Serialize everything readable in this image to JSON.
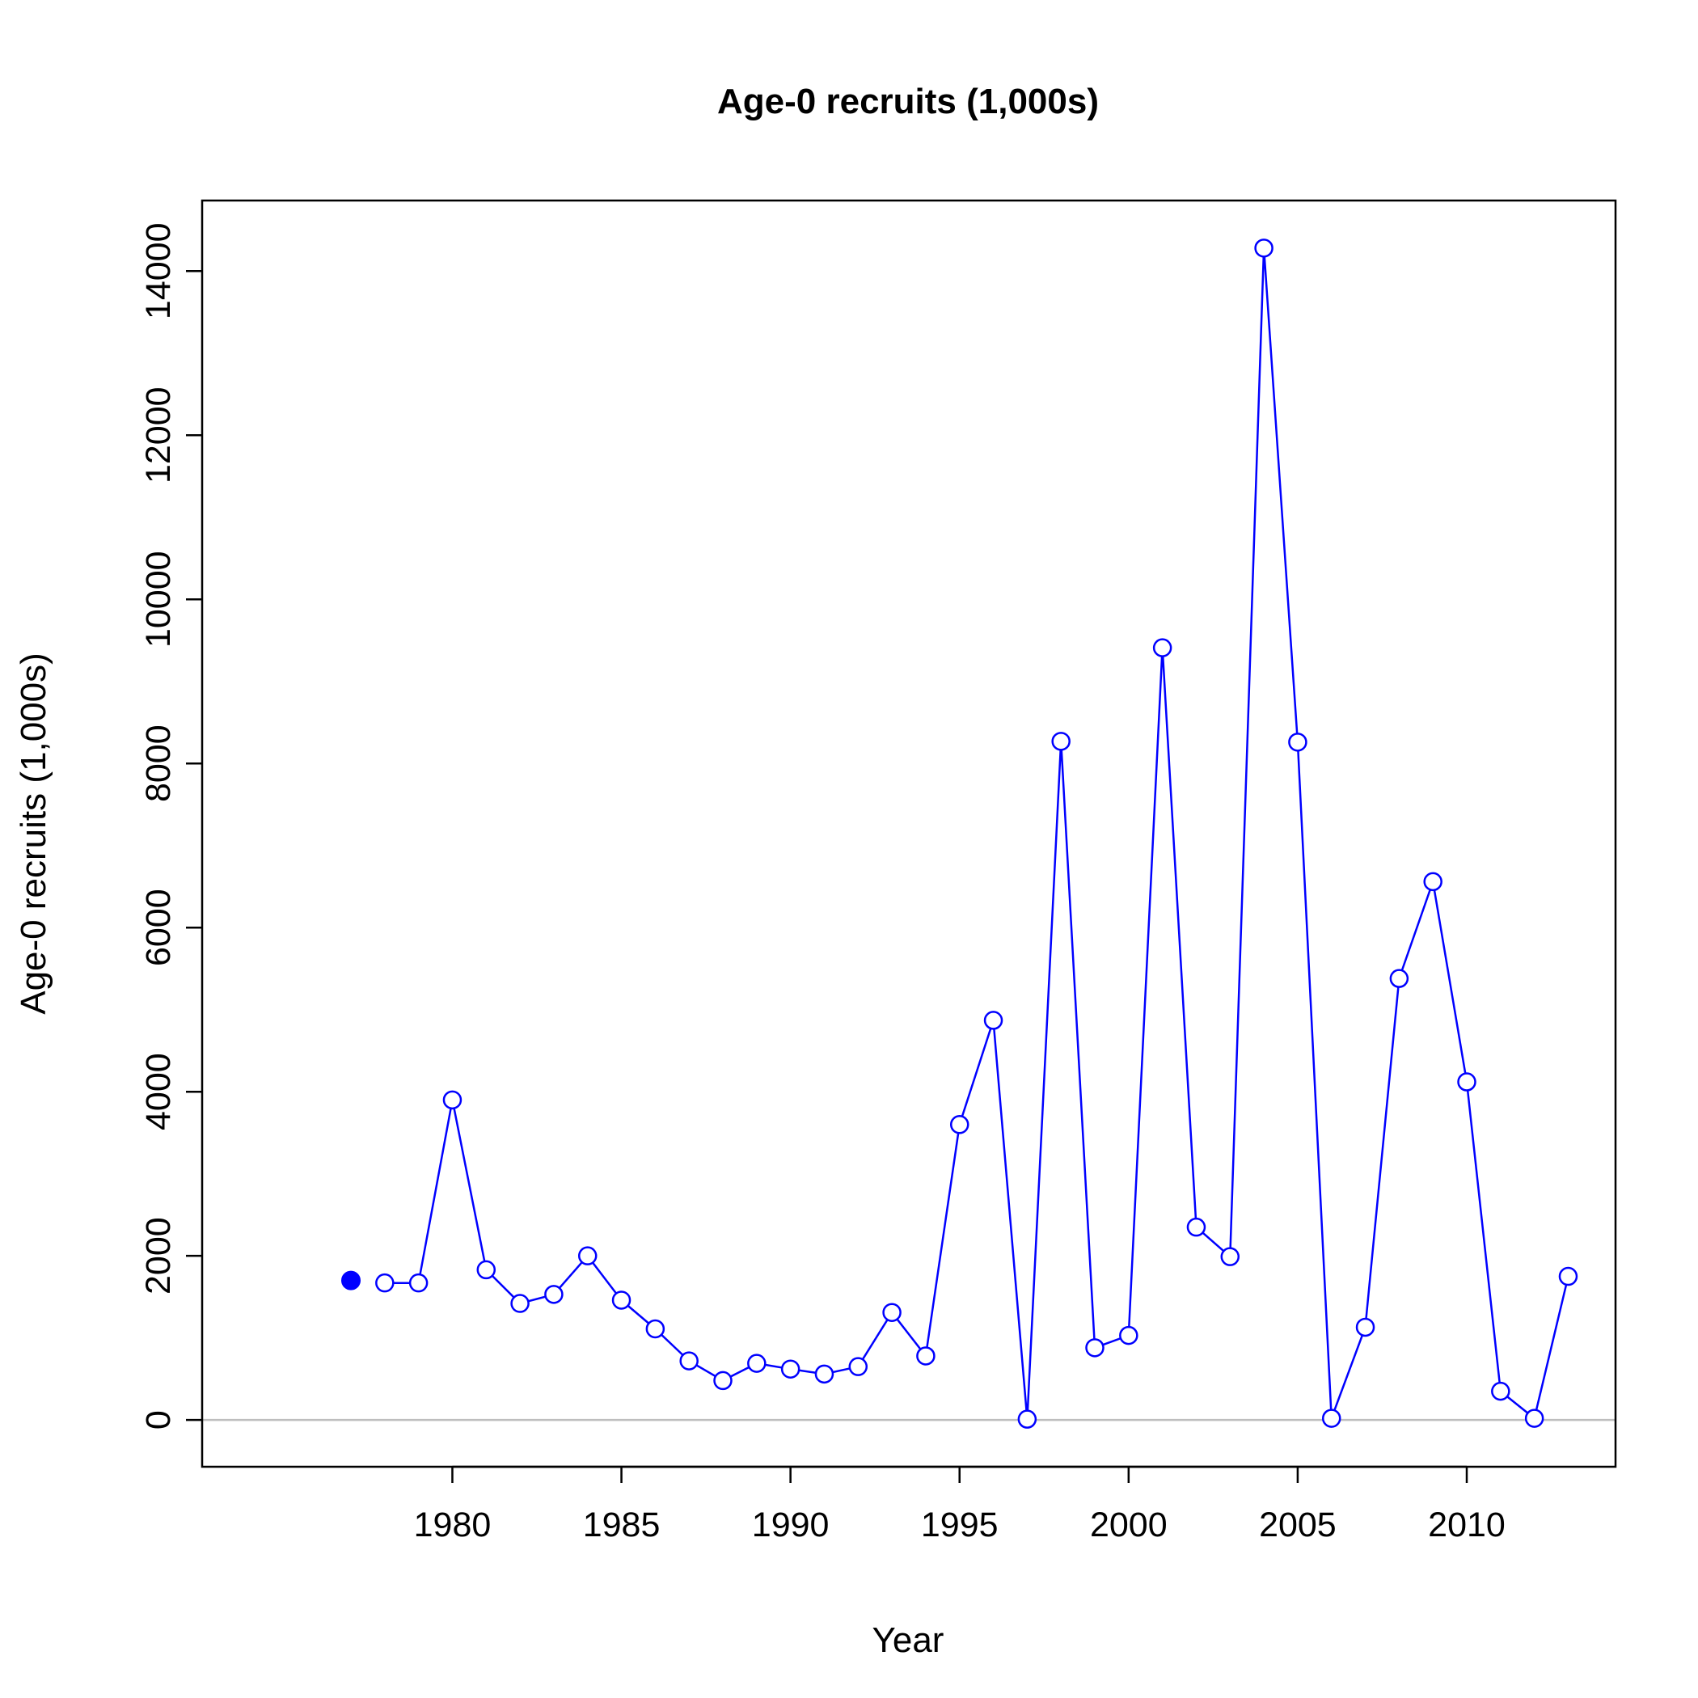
{
  "chart_data": {
    "type": "line",
    "title": "Age-0 recruits (1,000s)",
    "xlabel": "Year",
    "ylabel": "Age-0 recruits (1,000s)",
    "xlim": [
      1972.6,
      2014.4
    ],
    "ylim": [
      -570,
      14860
    ],
    "x_ticks": [
      1980,
      1985,
      1990,
      1995,
      2000,
      2005,
      2010
    ],
    "y_ticks": [
      0,
      2000,
      4000,
      6000,
      8000,
      10000,
      12000,
      14000
    ],
    "reference_line": {
      "y": 0,
      "color": "#bebebe"
    },
    "grid": false,
    "legend": "none",
    "colors": {
      "series": "#0000ff",
      "axes": "#000000"
    },
    "initial_point": {
      "x": 1977,
      "y": 1700,
      "marker": "filled-circle"
    },
    "series": [
      {
        "marker": "open-circle",
        "x": [
          1978,
          1979,
          1980,
          1981,
          1982,
          1983,
          1984,
          1985,
          1986,
          1987,
          1988,
          1989,
          1990,
          1991,
          1992,
          1993,
          1994,
          1995,
          1996,
          1997,
          1998,
          1999,
          2000,
          2001,
          2002,
          2003,
          2004,
          2005,
          2006,
          2007,
          2008,
          2009,
          2010,
          2011,
          2012,
          2013
        ],
        "values": [
          1670,
          1670,
          3900,
          1830,
          1420,
          1530,
          2000,
          1460,
          1110,
          720,
          480,
          690,
          620,
          560,
          650,
          1310,
          780,
          3600,
          4870,
          10,
          8270,
          880,
          1030,
          9410,
          2350,
          1990,
          14280,
          8260,
          20,
          1130,
          5380,
          6560,
          4120,
          350,
          20,
          1750
        ]
      }
    ]
  }
}
